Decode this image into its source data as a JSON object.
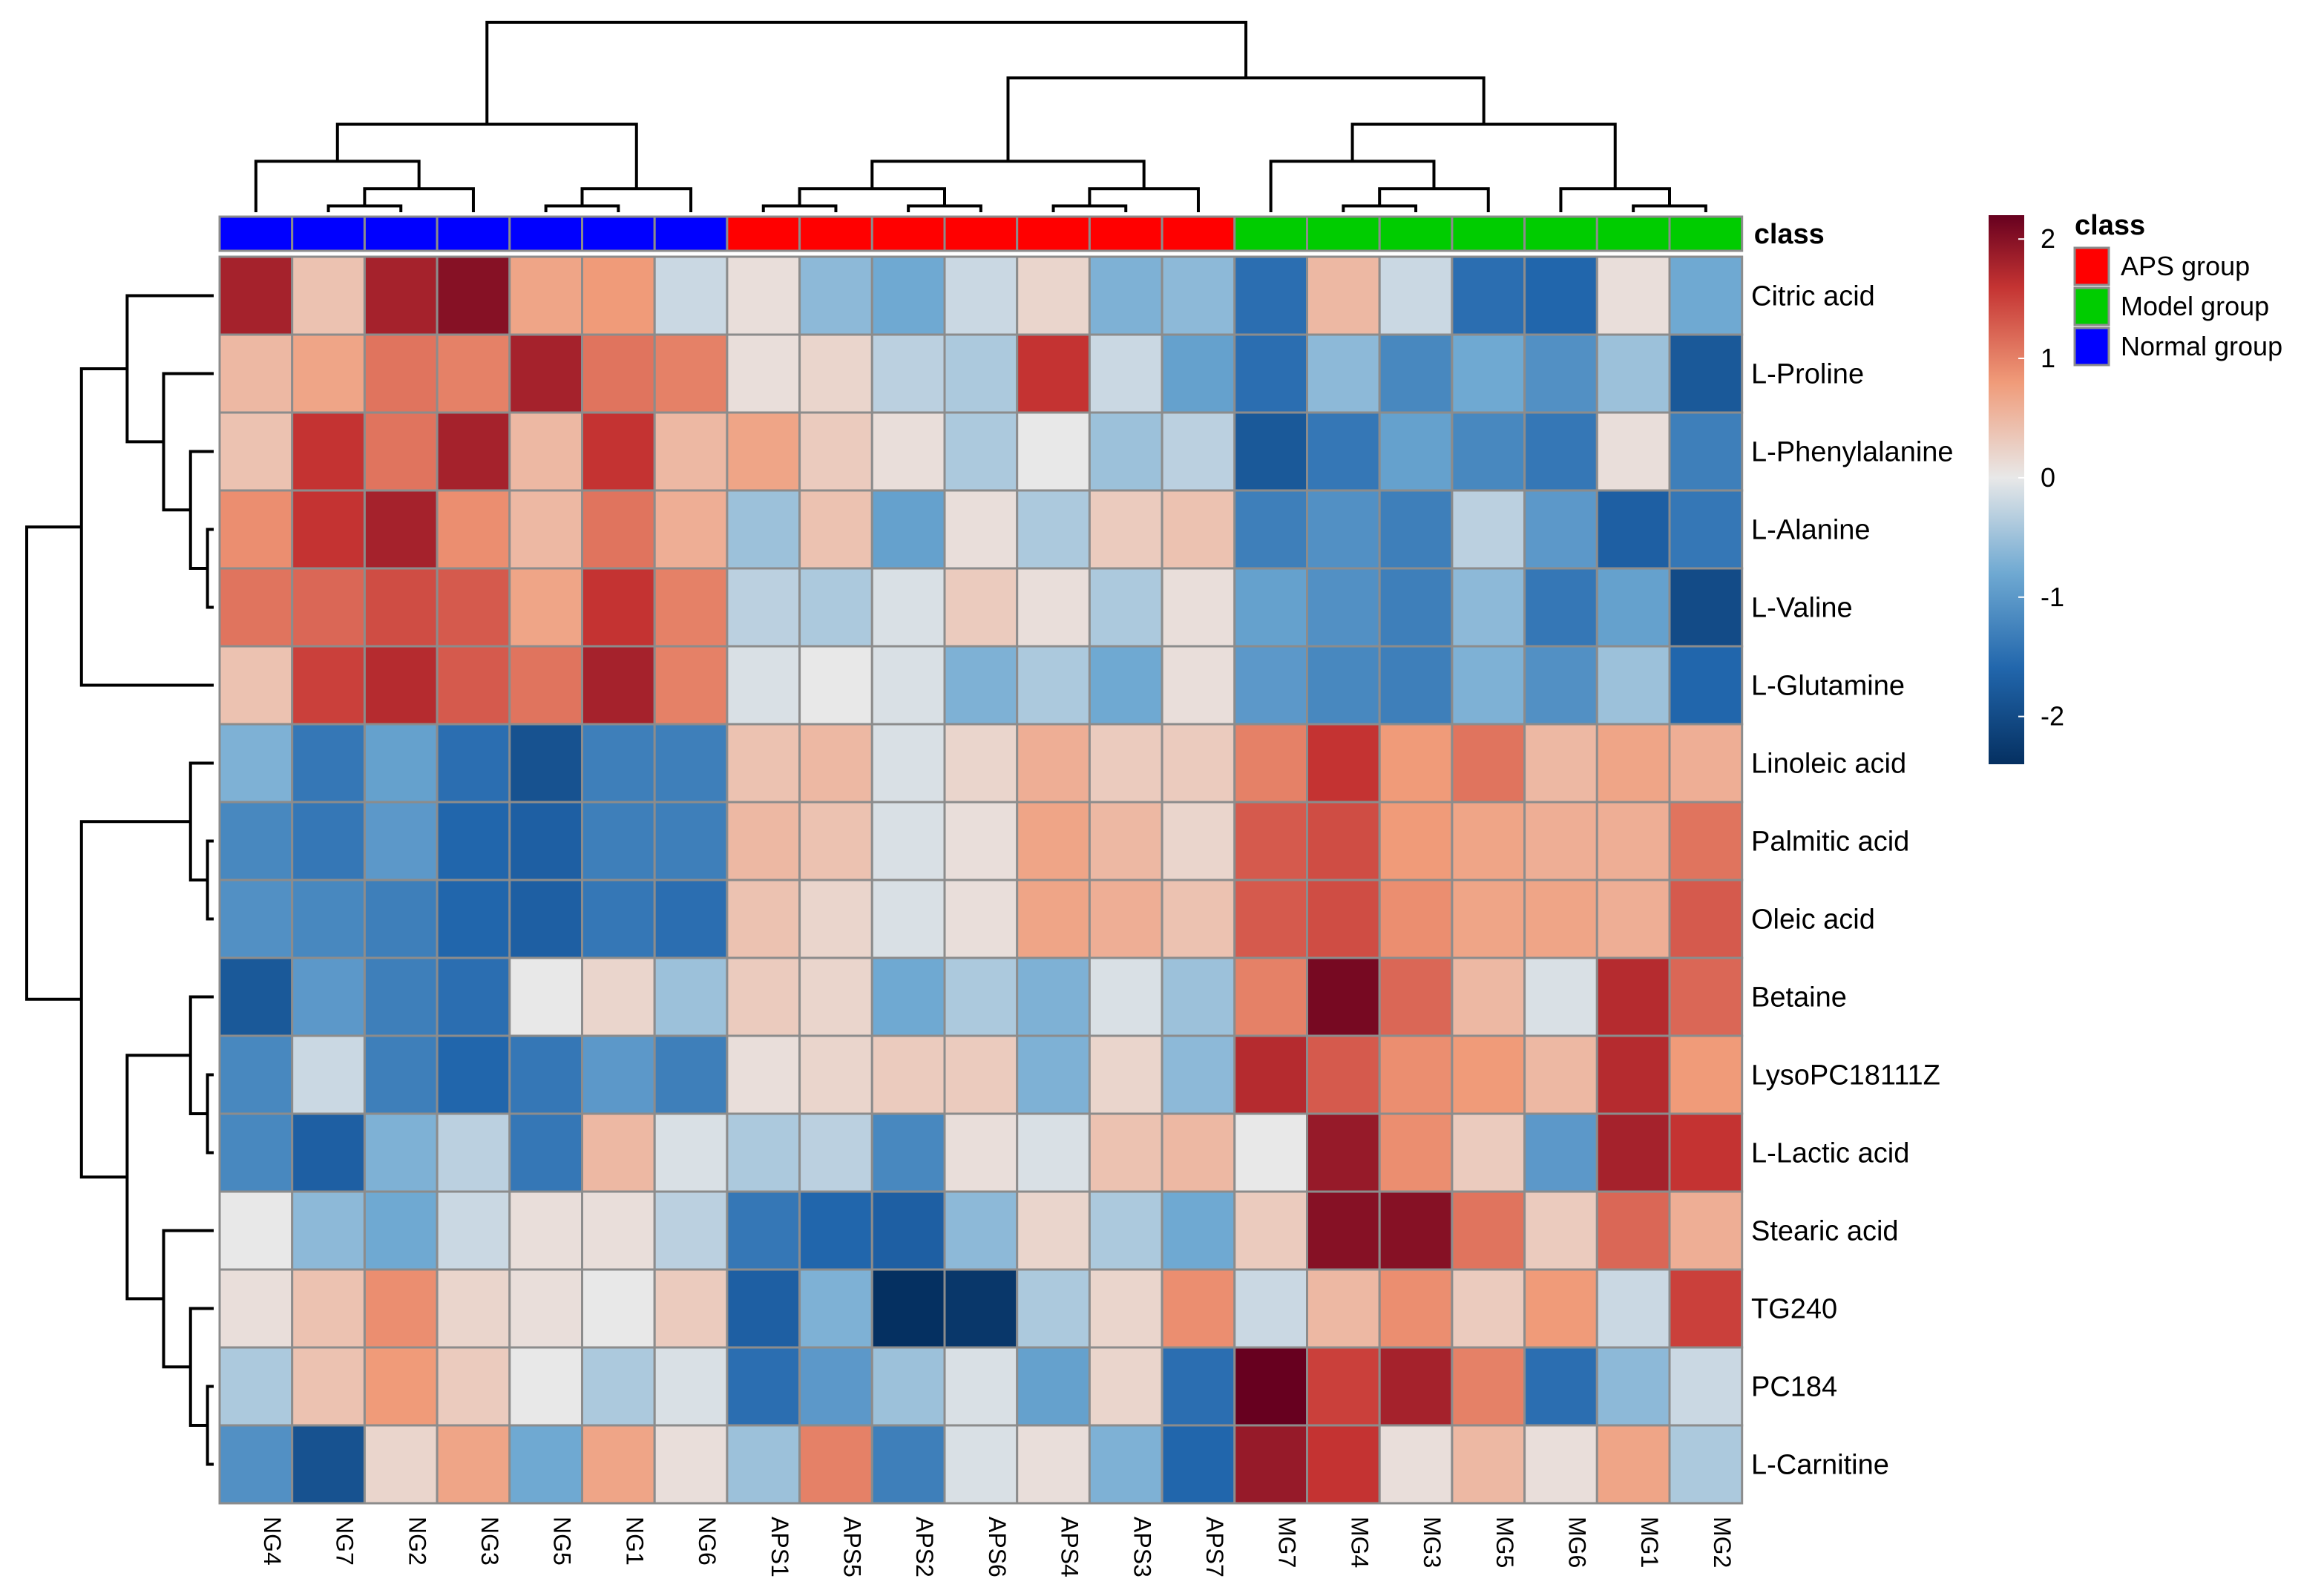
{
  "chart_data": {
    "type": "heatmap",
    "title": "",
    "columns": [
      "NG4",
      "NG7",
      "NG2",
      "NG3",
      "NG5",
      "NG1",
      "NG6",
      "APS1",
      "APS5",
      "APS2",
      "APS6",
      "APS4",
      "APS3",
      "APS7",
      "MG7",
      "MG4",
      "MG3",
      "MG5",
      "MG6",
      "MG1",
      "MG2"
    ],
    "column_class": [
      "Normal group",
      "Normal group",
      "Normal group",
      "Normal group",
      "Normal group",
      "Normal group",
      "Normal group",
      "APS group",
      "APS group",
      "APS group",
      "APS group",
      "APS group",
      "APS group",
      "APS group",
      "Model group",
      "Model group",
      "Model group",
      "Model group",
      "Model group",
      "Model group",
      "Model group"
    ],
    "rows": [
      "Citric acid",
      "L-Proline",
      "L-Phenylalanine",
      "L-Alanine",
      "L-Valine",
      "L-Glutamine",
      "Linoleic acid",
      "Palmitic acid",
      "Oleic acid",
      "Betaine",
      "LysoPC18111Z",
      "L-Lactic acid",
      "Stearic acid",
      "TG240",
      "PC184",
      "L-Carnitine"
    ],
    "values": [
      [
        1.8,
        0.4,
        1.8,
        2.0,
        0.7,
        0.8,
        -0.2,
        0.1,
        -0.6,
        -0.8,
        -0.2,
        0.2,
        -0.7,
        -0.6,
        -1.5,
        0.5,
        -0.2,
        -1.5,
        -1.6,
        0.1,
        -0.8
      ],
      [
        0.5,
        0.7,
        1.1,
        1.0,
        1.8,
        1.1,
        1.0,
        0.1,
        0.2,
        -0.3,
        -0.4,
        1.6,
        -0.2,
        -0.9,
        -1.5,
        -0.6,
        -1.2,
        -0.8,
        -1.1,
        -0.5,
        -1.8
      ],
      [
        0.4,
        1.6,
        1.1,
        1.8,
        0.5,
        1.6,
        0.5,
        0.7,
        0.3,
        0.1,
        -0.4,
        0.0,
        -0.5,
        -0.3,
        -1.8,
        -1.4,
        -0.9,
        -1.2,
        -1.4,
        0.1,
        -1.3
      ],
      [
        0.9,
        1.6,
        1.8,
        0.9,
        0.5,
        1.1,
        0.6,
        -0.5,
        0.4,
        -0.9,
        0.1,
        -0.4,
        0.3,
        0.4,
        -1.3,
        -1.1,
        -1.3,
        -0.3,
        -1.0,
        -1.7,
        -1.4
      ],
      [
        1.1,
        1.2,
        1.4,
        1.3,
        0.7,
        1.6,
        1.0,
        -0.3,
        -0.4,
        -0.1,
        0.3,
        0.1,
        -0.4,
        0.1,
        -0.9,
        -1.1,
        -1.3,
        -0.6,
        -1.4,
        -0.9,
        -2.0
      ],
      [
        0.4,
        1.5,
        1.7,
        1.3,
        1.1,
        1.8,
        1.0,
        -0.1,
        0.0,
        -0.1,
        -0.7,
        -0.4,
        -0.8,
        0.1,
        -1.0,
        -1.2,
        -1.3,
        -0.7,
        -1.1,
        -0.5,
        -1.6
      ],
      [
        -0.7,
        -1.4,
        -0.9,
        -1.5,
        -1.9,
        -1.3,
        -1.3,
        0.4,
        0.5,
        -0.1,
        0.2,
        0.6,
        0.3,
        0.3,
        1.0,
        1.6,
        0.8,
        1.1,
        0.5,
        0.7,
        0.6
      ],
      [
        -1.2,
        -1.4,
        -1.0,
        -1.6,
        -1.7,
        -1.3,
        -1.3,
        0.5,
        0.4,
        -0.1,
        0.1,
        0.7,
        0.5,
        0.2,
        1.3,
        1.4,
        0.8,
        0.7,
        0.6,
        0.6,
        1.1
      ],
      [
        -1.1,
        -1.2,
        -1.3,
        -1.6,
        -1.7,
        -1.4,
        -1.5,
        0.4,
        0.2,
        -0.1,
        0.1,
        0.7,
        0.6,
        0.4,
        1.3,
        1.4,
        0.9,
        0.7,
        0.7,
        0.6,
        1.3
      ],
      [
        -1.8,
        -1.0,
        -1.3,
        -1.5,
        0.0,
        0.2,
        -0.5,
        0.3,
        0.2,
        -0.8,
        -0.4,
        -0.7,
        -0.1,
        -0.5,
        1.0,
        2.1,
        1.2,
        0.5,
        -0.1,
        1.7,
        1.2
      ],
      [
        -1.2,
        -0.2,
        -1.3,
        -1.6,
        -1.4,
        -1.0,
        -1.3,
        0.1,
        0.2,
        0.3,
        0.3,
        -0.7,
        0.2,
        -0.6,
        1.7,
        1.3,
        0.9,
        0.8,
        0.5,
        1.7,
        0.8
      ],
      [
        -1.2,
        -1.7,
        -0.7,
        -0.3,
        -1.4,
        0.5,
        -0.1,
        -0.4,
        -0.3,
        -1.2,
        0.1,
        -0.1,
        0.4,
        0.5,
        0.0,
        1.9,
        0.9,
        0.3,
        -1.0,
        1.8,
        1.6
      ],
      [
        0.0,
        -0.6,
        -0.8,
        -0.2,
        0.1,
        0.1,
        -0.3,
        -1.4,
        -1.6,
        -1.7,
        -0.6,
        0.2,
        -0.4,
        -0.8,
        0.3,
        2.0,
        2.0,
        1.1,
        0.3,
        1.2,
        0.6
      ],
      [
        0.1,
        0.4,
        0.9,
        0.2,
        0.1,
        0.0,
        0.3,
        -1.7,
        -0.7,
        -2.4,
        -2.3,
        -0.4,
        0.2,
        0.9,
        -0.2,
        0.5,
        0.9,
        0.3,
        0.8,
        -0.2,
        1.5
      ],
      [
        -0.4,
        0.4,
        0.8,
        0.3,
        0.0,
        -0.4,
        -0.1,
        -1.5,
        -1.0,
        -0.5,
        -0.1,
        -0.9,
        0.2,
        -1.5,
        2.2,
        1.5,
        1.8,
        1.0,
        -1.5,
        -0.6,
        -0.2
      ],
      [
        -1.1,
        -1.9,
        0.2,
        0.7,
        -0.8,
        0.7,
        0.1,
        -0.5,
        1.0,
        -1.3,
        -0.1,
        0.1,
        -0.7,
        -1.6,
        1.9,
        1.6,
        0.1,
        0.5,
        0.1,
        0.7,
        -0.4
      ]
    ],
    "color_scale": {
      "min": -2.4,
      "max": 2.2,
      "stops": [
        {
          "value": -2.4,
          "color": "#053061"
        },
        {
          "value": -1.6,
          "color": "#2166ac"
        },
        {
          "value": -0.8,
          "color": "#6fa9d2"
        },
        {
          "value": 0.0,
          "color": "#e8e8e8"
        },
        {
          "value": 0.8,
          "color": "#f09b79"
        },
        {
          "value": 1.6,
          "color": "#c43332"
        },
        {
          "value": 2.2,
          "color": "#67001f"
        }
      ]
    },
    "legend": {
      "ticks": [
        2,
        1,
        0,
        -1,
        -2
      ],
      "tick_labels": [
        "2",
        "1",
        "0",
        "-1",
        "-2"
      ],
      "placement": "right"
    },
    "class_annotation": {
      "title": "class",
      "row_label": "class",
      "entries": [
        {
          "label": "APS group",
          "color": "#ff0000"
        },
        {
          "label": "Model group",
          "color": "#00cc00"
        },
        {
          "label": "Normal group",
          "color": "#0000ff"
        }
      ]
    },
    "dendrograms": {
      "columns": "top",
      "rows": "left"
    }
  }
}
